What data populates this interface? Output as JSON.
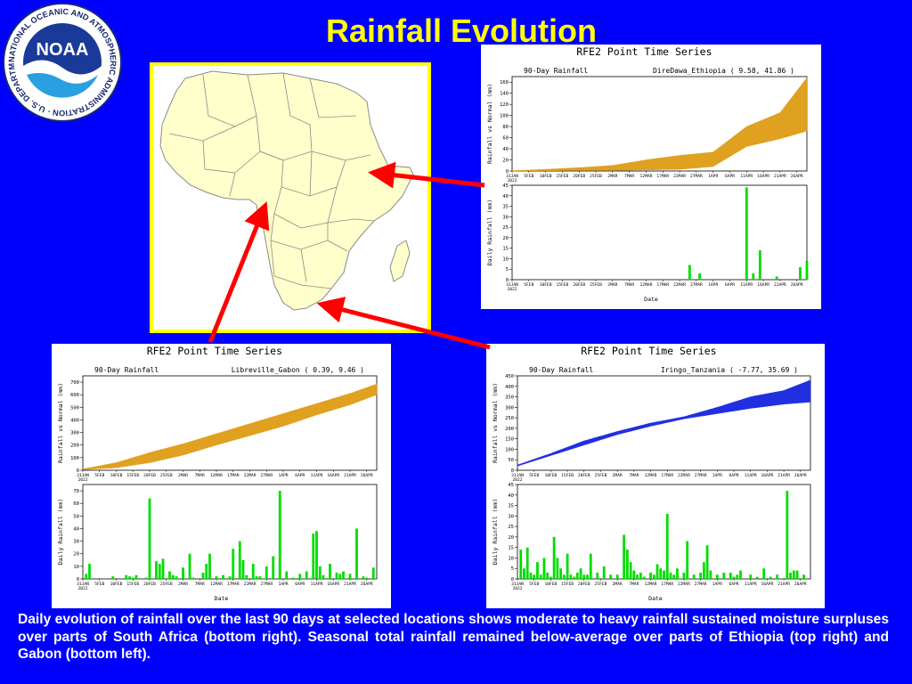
{
  "slide": {
    "title": "Rainfall Evolution",
    "caption": "Daily evolution of rainfall over the last 90 days at selected locations shows moderate to heavy rainfall sustained moisture surpluses over parts of South Africa (bottom right). Seasonal total rainfall remained below-average over parts of Ethiopia (top right) and Gabon (bottom left).",
    "background_color": "#0000ff",
    "title_color": "#ffff00"
  },
  "logo": {
    "text": "NOAA",
    "ring_text": "NATIONAL OCEANIC AND ATMOSPHERIC ADMINISTRATION · U.S. DEPARTMENT OF COMMERCE ·",
    "icon": "noaa-seagull-logo"
  },
  "map": {
    "icon": "africa-map",
    "fill": "#ffffcc",
    "border": "#ffff00"
  },
  "chart_data": [
    {
      "type": "area",
      "id": "ethiopia",
      "title": "RFE2 Point Time Series",
      "subtitle": "90-Day Rainfall",
      "location": "DireDawa_Ethiopia  ( 9.58, 41.86 )",
      "ylabel": "Rainfall vs Normal (mm)",
      "ylim": [
        0,
        170
      ],
      "yticks": [
        0,
        20,
        40,
        60,
        80,
        100,
        120,
        140,
        160
      ],
      "fill_color": "#e0a020",
      "xticks": [
        "31JAN\n2022",
        "5FEB",
        "10FEB",
        "15FEB",
        "20FEB",
        "25FEB",
        "2MAR",
        "7MAR",
        "12MAR",
        "17MAR",
        "22MAR",
        "27MAR",
        "1APR",
        "6APR",
        "11APR",
        "16APR",
        "21APR",
        "26APR"
      ],
      "x_days": [
        0,
        10,
        20,
        30,
        40,
        50,
        60,
        70,
        80,
        88
      ],
      "normal": [
        0.5,
        3,
        6,
        10,
        20,
        28,
        34,
        80,
        105,
        168
      ],
      "actual": [
        0,
        0.5,
        1,
        1,
        2,
        3,
        8,
        44,
        58,
        72
      ],
      "daily": {
        "ylabel": "Daily Rainfall (mm)",
        "xlabel": "Date",
        "ylim": [
          0,
          45
        ],
        "yticks": [
          0,
          5,
          10,
          15,
          20,
          25,
          30,
          35,
          40,
          45
        ],
        "bar_color": "#00dd00",
        "days": [
          53,
          56,
          70,
          72,
          74,
          79,
          86,
          88
        ],
        "values": [
          7,
          3,
          44,
          3,
          14,
          1.5,
          6,
          9
        ]
      }
    },
    {
      "type": "area",
      "id": "gabon",
      "title": "RFE2 Point Time Series",
      "subtitle": "90-Day Rainfall",
      "location": "Libreville_Gabon  ( 0.39, 9.46 )",
      "ylabel": "Rainfall vs Normal (mm)",
      "ylim": [
        0,
        750
      ],
      "yticks": [
        0,
        100,
        200,
        300,
        400,
        500,
        600,
        700
      ],
      "fill_color": "#e0a020",
      "xticks": [
        "31JAN\n2022",
        "5FEB",
        "10FEB",
        "15FEB",
        "20FEB",
        "25FEB",
        "2MAR",
        "7MAR",
        "12MAR",
        "17MAR",
        "22MAR",
        "27MAR",
        "1APR",
        "6APR",
        "11APR",
        "16APR",
        "21APR",
        "26APR"
      ],
      "x_days": [
        0,
        10,
        20,
        30,
        40,
        50,
        60,
        70,
        80,
        88
      ],
      "normal": [
        10,
        60,
        140,
        210,
        290,
        370,
        450,
        530,
        610,
        685
      ],
      "actual": [
        5,
        20,
        60,
        120,
        200,
        275,
        350,
        440,
        520,
        600
      ],
      "daily": {
        "ylabel": "Daily Rainfall (mm)",
        "xlabel": "Date",
        "ylim": [
          0,
          75
        ],
        "yticks": [
          0,
          10,
          20,
          30,
          40,
          50,
          60,
          70
        ],
        "bar_color": "#00dd00",
        "days": [
          1,
          2,
          9,
          13,
          14,
          15,
          16,
          19,
          20,
          22,
          23,
          24,
          26,
          27,
          28,
          30,
          32,
          33,
          36,
          37,
          38,
          40,
          42,
          44,
          45,
          47,
          48,
          49,
          51,
          52,
          53,
          55,
          57,
          59,
          61,
          63,
          65,
          67,
          69,
          70,
          71,
          72,
          74,
          76,
          77,
          78,
          80,
          82,
          84,
          85,
          87
        ],
        "values": [
          4,
          12,
          2,
          3,
          2,
          1,
          3,
          1,
          64,
          14,
          12,
          16,
          6,
          3,
          2,
          9,
          20,
          1,
          5,
          12,
          20,
          2,
          3,
          2,
          24,
          30,
          15,
          3,
          12,
          2,
          2,
          10,
          18,
          70,
          6,
          1,
          4,
          6,
          36,
          38,
          10,
          3,
          12,
          5,
          4,
          6,
          4,
          40,
          2,
          1,
          9
        ]
      }
    },
    {
      "type": "area",
      "id": "tanzania",
      "title": "RFE2 Point Time Series",
      "subtitle": "90-Day Rainfall",
      "location": "Iringo_Tanzania  ( -7.77, 35.69 )",
      "ylabel": "Rainfall vs Normal (mm)",
      "ylim": [
        0,
        450
      ],
      "yticks": [
        0,
        50,
        100,
        150,
        200,
        250,
        300,
        350,
        400,
        450
      ],
      "fill_color": "#2030e0",
      "xticks": [
        "31JAN\n2022",
        "5FEB",
        "10FEB",
        "15FEB",
        "20FEB",
        "25FEB",
        "2MAR",
        "7MAR",
        "12MAR",
        "17MAR",
        "22MAR",
        "27MAR",
        "1APR",
        "6APR",
        "11APR",
        "16APR",
        "21APR",
        "26APR"
      ],
      "x_days": [
        0,
        10,
        20,
        30,
        40,
        50,
        60,
        70,
        80,
        88
      ],
      "normal": [
        20,
        70,
        120,
        170,
        210,
        245,
        270,
        295,
        315,
        325
      ],
      "actual": [
        25,
        80,
        140,
        185,
        225,
        255,
        300,
        350,
        380,
        430
      ],
      "daily": {
        "ylabel": "Daily Rainfall (mm)",
        "xlabel": "Date",
        "ylim": [
          0,
          45
        ],
        "yticks": [
          0,
          5,
          10,
          15,
          20,
          25,
          30,
          35,
          40,
          45
        ],
        "bar_color": "#00dd00",
        "days": [
          1,
          2,
          3,
          4,
          5,
          6,
          7,
          8,
          9,
          10,
          11,
          12,
          13,
          14,
          15,
          16,
          17,
          18,
          19,
          20,
          21,
          22,
          24,
          26,
          28,
          30,
          32,
          33,
          34,
          35,
          36,
          37,
          38,
          40,
          41,
          42,
          43,
          44,
          45,
          46,
          47,
          48,
          50,
          51,
          53,
          55,
          56,
          57,
          58,
          60,
          62,
          64,
          65,
          66,
          67,
          70,
          72,
          74,
          76,
          78,
          81,
          82,
          83,
          84,
          86
        ],
        "values": [
          14,
          5,
          15,
          3,
          2,
          8,
          2,
          10,
          3,
          1,
          20,
          10,
          5,
          2,
          12,
          2,
          1,
          3,
          5,
          2,
          2,
          12,
          3,
          6,
          2,
          2,
          21,
          14,
          8,
          4,
          2,
          3,
          1,
          3,
          2,
          7,
          5,
          4,
          31,
          3,
          2,
          5,
          3,
          18,
          2,
          3,
          8,
          16,
          4,
          2,
          3,
          3,
          1,
          2,
          4,
          2,
          1,
          5,
          1,
          2,
          42,
          3,
          4,
          4,
          2
        ]
      }
    }
  ]
}
